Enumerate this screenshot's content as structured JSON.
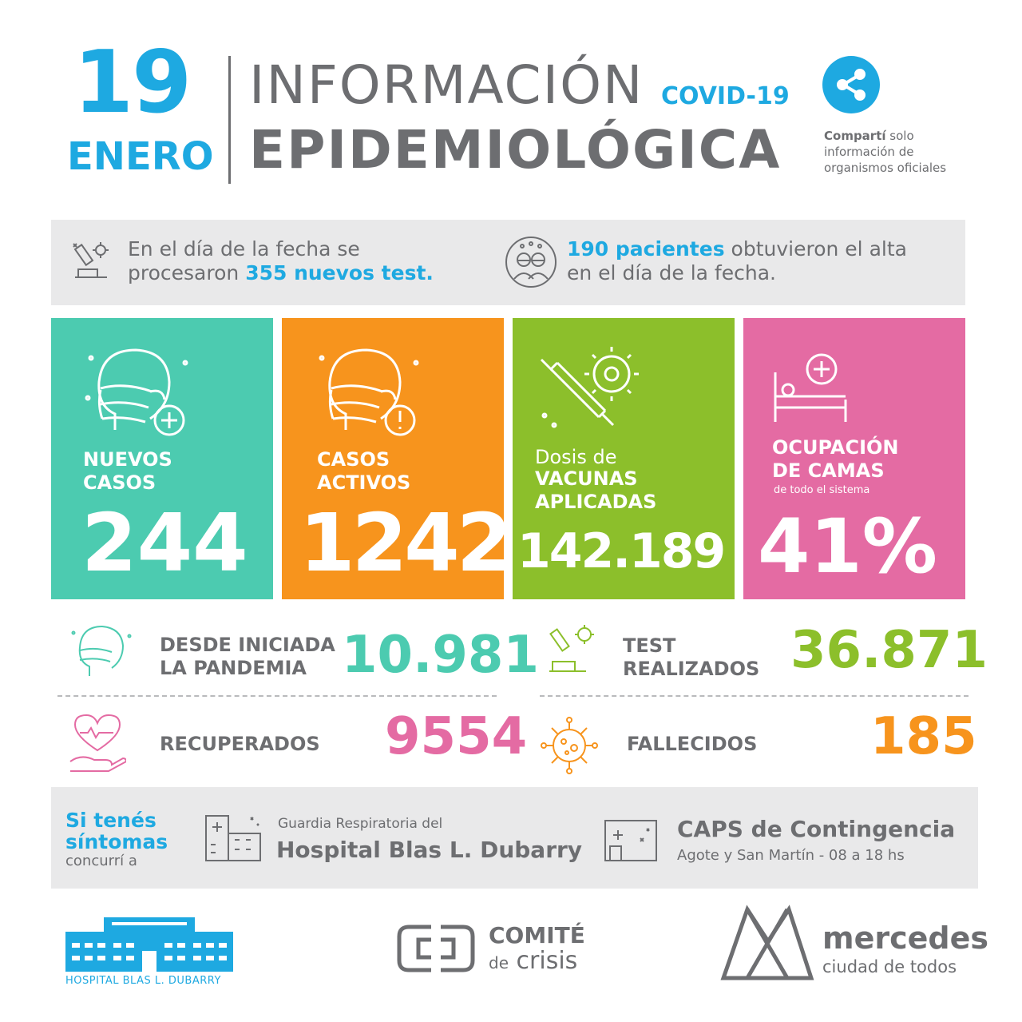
{
  "colors": {
    "blue": "#1ea9e1",
    "teal": "#4ccbb0",
    "orange": "#f7941d",
    "green": "#8cbf2b",
    "pink": "#e46ba3",
    "gray": "#6d6e71",
    "light_gray": "#e9e9ea"
  },
  "header": {
    "day": "19",
    "month": "ENERO",
    "title_line1": "INFORMACIÓN",
    "title_line2": "EPIDEMIOLÓGICA",
    "covid_label": "COVID-19",
    "share_icon": "share-icon",
    "share_bold": "Compartí",
    "share_rest": " solo",
    "share_line2": "información de",
    "share_line3": "organismos oficiales"
  },
  "info_band": {
    "tests_icon": "microscope-icon",
    "tests_line1": "En el día de la fecha se",
    "tests_line2_prefix": "procesaron ",
    "tests_line2_highlight": "355 nuevos test.",
    "alta_icon": "patients-icon",
    "alta_highlight": "190 pacientes",
    "alta_line1_rest": " obtuvieron el alta",
    "alta_line2": "en el día de la fecha."
  },
  "tiles": {
    "nuevos": {
      "icon": "masked-head-plus-icon",
      "label1": "NUEVOS",
      "label2": "CASOS",
      "value": "244"
    },
    "activos": {
      "icon": "masked-head-alert-icon",
      "label1": "CASOS",
      "label2": "ACTIVOS",
      "value": "1242"
    },
    "vacunas": {
      "icon": "vaccine-virus-icon",
      "pre": "Dosis de",
      "label1": "VACUNAS",
      "label2": "APLICADAS",
      "value": "142.189"
    },
    "camas": {
      "icon": "hospital-bed-icon",
      "label1": "OCUPACIÓN",
      "label2": "DE CAMAS",
      "sub": "de todo el sistema",
      "value": "41%"
    }
  },
  "stats": {
    "pandemia": {
      "icon": "masked-head-icon",
      "label1": "DESDE INICIADA",
      "label2": "LA PANDEMIA",
      "value": "10.981"
    },
    "test": {
      "icon": "lab-microscope-icon",
      "label1": "TEST",
      "label2": "REALIZADOS",
      "value": "36.871"
    },
    "recuperados": {
      "icon": "heart-hand-icon",
      "label": "RECUPERADOS",
      "value": "9554"
    },
    "fallecidos": {
      "icon": "virus-icon",
      "label": "FALLECIDOS",
      "value": "185"
    }
  },
  "contact": {
    "line1": "Si tenés",
    "line2": "síntomas",
    "line3": "concurrí a",
    "hospital_icon": "hospital-building-icon",
    "hospital_pre": "Guardia Respiratoria del",
    "hospital_name": "Hospital Blas L. Dubarry",
    "caps_icon": "clinic-building-icon",
    "caps_name": "CAPS de Contingencia",
    "caps_detail": "Agote y San Martín - 08 a 18 hs"
  },
  "footer": {
    "hospital_logo": "hospital-logo-icon",
    "hospital_logo_text": "HOSPITAL BLAS L. DUBARRY",
    "comite_logo": "comite-logo-icon",
    "comite_line1": "COMITÉ",
    "comite_line2_a": "de",
    "comite_line2_b": "crisis",
    "mercedes_logo": "mercedes-logo-icon",
    "mercedes_line1": "mercedes",
    "mercedes_line2": "ciudad de todos"
  }
}
